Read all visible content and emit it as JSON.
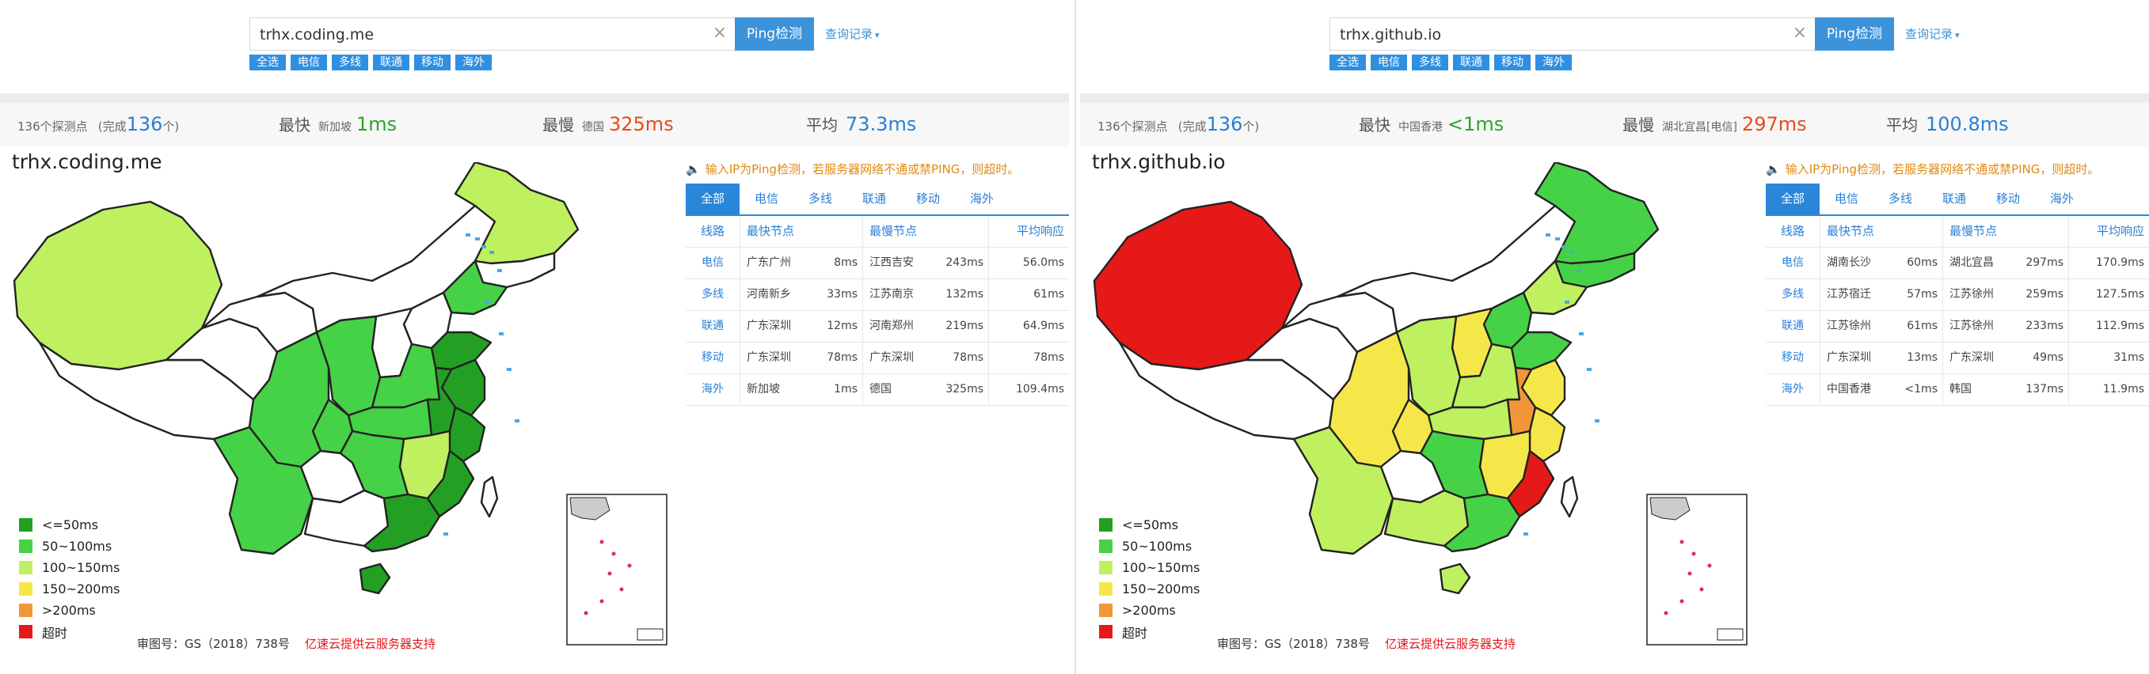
{
  "legend_colors": [
    "#23a023",
    "#46d246",
    "#bff060",
    "#f5e74a",
    "#f2963a",
    "#e61919"
  ],
  "panels": [
    {
      "search": {
        "value": "trhx.coding.me",
        "button": "Ping检测",
        "history": "查询记录"
      },
      "filters": [
        "全选",
        "电信",
        "多线",
        "联通",
        "移动",
        "海外"
      ],
      "stats": {
        "probes_text": "136个探测点",
        "completed_prefix": "(完成",
        "completed_count": "136",
        "completed_suffix": "个)",
        "fastest_label": "最快",
        "fastest_node": "新加坡",
        "fastest_value": "1ms",
        "slowest_label": "最慢",
        "slowest_node": "德国",
        "slowest_value": "325ms",
        "avg_label": "平均",
        "avg_value": "73.3ms"
      },
      "map_title": "trhx.coding.me",
      "legend": [
        "<=50ms",
        "50~100ms",
        "100~150ms",
        "150~200ms",
        ">200ms",
        "超时"
      ],
      "footer": {
        "approval": "审图号：GS（2018）738号",
        "sponsor": "亿速云提供云服务器支持"
      },
      "notice": "输入IP为Ping检测，若服务器网络不通或禁PING，则超时。",
      "tabs": [
        "全部",
        "电信",
        "多线",
        "联通",
        "移动",
        "海外"
      ],
      "table_headers": [
        "线路",
        "最快节点",
        "最慢节点",
        "平均响应"
      ],
      "rows": [
        {
          "line": "电信",
          "fast_node": "广东广州",
          "fast_ms": "8ms",
          "slow_node": "江西吉安",
          "slow_ms": "243ms",
          "avg": "56.0ms"
        },
        {
          "line": "多线",
          "fast_node": "河南新乡",
          "fast_ms": "33ms",
          "slow_node": "江苏南京",
          "slow_ms": "132ms",
          "avg": "61ms"
        },
        {
          "line": "联通",
          "fast_node": "广东深圳",
          "fast_ms": "12ms",
          "slow_node": "河南郑州",
          "slow_ms": "219ms",
          "avg": "64.9ms"
        },
        {
          "line": "移动",
          "fast_node": "广东深圳",
          "fast_ms": "78ms",
          "slow_node": "广东深圳",
          "slow_ms": "78ms",
          "avg": "78ms"
        },
        {
          "line": "海外",
          "fast_node": "新加坡",
          "fast_ms": "1ms",
          "slow_node": "德国",
          "slow_ms": "325ms",
          "avg": "109.4ms"
        }
      ],
      "region_levels": {
        "xinjiang": 2,
        "tibet": -1,
        "qinghai": -1,
        "gansu": -1,
        "innermongolia": -1,
        "heilongjiang": 2,
        "jilin": -1,
        "liaoning": 1,
        "hebei": -1,
        "shandong": 0,
        "henan": 1,
        "shanxi": -1,
        "shaanxi": 1,
        "sichuan": 1,
        "chongqing": 1,
        "hubei": 1,
        "anhui": 0,
        "jiangsu": 0,
        "zhejiang": 0,
        "hunan": 1,
        "jiangxi": 2,
        "fujian": 0,
        "guangdong": 0,
        "guangxi": -1,
        "yunnan": 1,
        "guizhou": -1,
        "hainan": 0,
        "taiwan": -1
      }
    },
    {
      "search": {
        "value": "trhx.github.io",
        "button": "Ping检测",
        "history": "查询记录"
      },
      "filters": [
        "全选",
        "电信",
        "多线",
        "联通",
        "移动",
        "海外"
      ],
      "stats": {
        "probes_text": "136个探测点",
        "completed_prefix": "(完成",
        "completed_count": "136",
        "completed_suffix": "个)",
        "fastest_label": "最快",
        "fastest_node": "中国香港",
        "fastest_value": "<1ms",
        "slowest_label": "最慢",
        "slowest_node": "湖北宜昌[电信]",
        "slowest_value": "297ms",
        "avg_label": "平均",
        "avg_value": "100.8ms"
      },
      "map_title": "trhx.github.io",
      "legend": [
        "<=50ms",
        "50~100ms",
        "100~150ms",
        "150~200ms",
        ">200ms",
        "超时"
      ],
      "footer": {
        "approval": "审图号：GS（2018）738号",
        "sponsor": "亿速云提供云服务器支持"
      },
      "notice": "输入IP为Ping检测，若服务器网络不通或禁PING，则超时。",
      "tabs": [
        "全部",
        "电信",
        "多线",
        "联通",
        "移动",
        "海外"
      ],
      "table_headers": [
        "线路",
        "最快节点",
        "最慢节点",
        "平均响应"
      ],
      "rows": [
        {
          "line": "电信",
          "fast_node": "湖南长沙",
          "fast_ms": "60ms",
          "slow_node": "湖北宜昌",
          "slow_ms": "297ms",
          "avg": "170.9ms"
        },
        {
          "line": "多线",
          "fast_node": "江苏宿迁",
          "fast_ms": "57ms",
          "slow_node": "江苏徐州",
          "slow_ms": "259ms",
          "avg": "127.5ms"
        },
        {
          "line": "联通",
          "fast_node": "江苏徐州",
          "fast_ms": "61ms",
          "slow_node": "江苏徐州",
          "slow_ms": "233ms",
          "avg": "112.9ms"
        },
        {
          "line": "移动",
          "fast_node": "广东深圳",
          "fast_ms": "13ms",
          "slow_node": "广东深圳",
          "slow_ms": "49ms",
          "avg": "31ms"
        },
        {
          "line": "海外",
          "fast_node": "中国香港",
          "fast_ms": "<1ms",
          "slow_node": "韩国",
          "slow_ms": "137ms",
          "avg": "11.9ms"
        }
      ],
      "region_levels": {
        "xinjiang": 5,
        "tibet": -1,
        "qinghai": -1,
        "gansu": -1,
        "innermongolia": -1,
        "heilongjiang": 1,
        "jilin": 1,
        "liaoning": 2,
        "hebei": 1,
        "shandong": 1,
        "henan": 2,
        "shanxi": 3,
        "shaanxi": 2,
        "sichuan": 3,
        "chongqing": 3,
        "hubei": 2,
        "anhui": 4,
        "jiangsu": 3,
        "zhejiang": 3,
        "hunan": 1,
        "jiangxi": 3,
        "fujian": 5,
        "guangdong": 1,
        "guangxi": 2,
        "yunnan": 2,
        "guizhou": -1,
        "hainan": 2,
        "taiwan": -1
      }
    }
  ]
}
